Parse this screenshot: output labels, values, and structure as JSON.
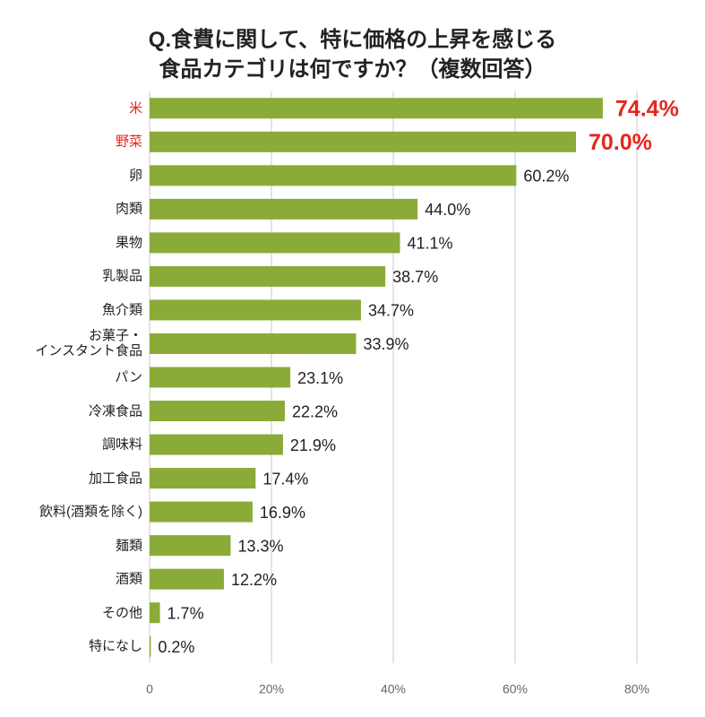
{
  "chart_data": {
    "type": "hbar",
    "title": [
      "Q.食費に関して、特に価格の上昇を感じる",
      "食品カテゴリは何ですか？（複数回答）"
    ],
    "categories": [
      "米",
      "野菜",
      "卵",
      "肉類",
      "果物",
      "乳製品",
      "魚介類",
      "お菓子・\nインスタント食品",
      "パン",
      "冷凍食品",
      "調味料",
      "加工食品",
      "飲料(酒類を除く)",
      "麺類",
      "酒類",
      "その他",
      "特になし"
    ],
    "values": [
      74.4,
      70.0,
      60.2,
      44.0,
      41.1,
      38.7,
      34.7,
      33.9,
      23.1,
      22.2,
      21.9,
      17.4,
      16.9,
      13.3,
      12.2,
      1.7,
      0.2
    ],
    "value_labels": [
      "74.4%",
      "70.0%",
      "60.2%",
      "44.0%",
      "41.1%",
      "38.7%",
      "34.7%",
      "33.9%",
      "23.1%",
      "22.2%",
      "21.9%",
      "17.4%",
      "16.9%",
      "13.3%",
      "12.2%",
      "1.7%",
      "0.2%"
    ],
    "color": "#8aab38",
    "highlight": [
      0,
      1
    ],
    "highlight_color": "#e5261c",
    "xlim": [
      0,
      80
    ],
    "xticks": [
      0,
      {
        "value": 20,
        "label": "20%"
      },
      {
        "value": 40,
        "label": "40%"
      },
      {
        "value": 60,
        "label": "60%"
      },
      {
        "value": 80,
        "label": "80%"
      }
    ],
    "grid": true
  }
}
